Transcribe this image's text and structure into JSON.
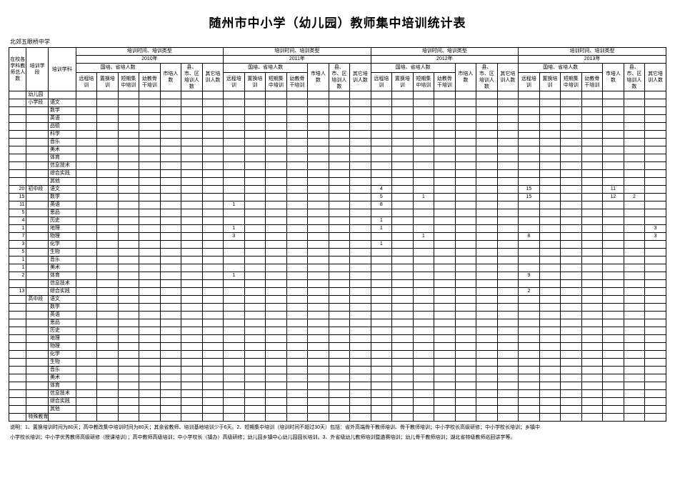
{
  "title": "随州市中小学（幼儿园）教师集中培训统计表",
  "subtitle": "北郊五眼桥中学",
  "header": {
    "col_a": "在校各学科教师总人数",
    "col_b": "培训学段",
    "col_c": "培训学科",
    "year_block_top": "培训时间、培训类型",
    "years": [
      "2010年",
      "2011年",
      "2012年",
      "2013年"
    ],
    "group_guosheng": "国培、省培人数",
    "sub_yuancheng": "远程培训",
    "sub_zhihuan": "置换培训",
    "sub_duanqi": "短期集中培训",
    "sub_yougugan": "幼教骨干培训",
    "col_shipei": "市培人数",
    "col_xianqu": "县、市、区培训人数",
    "col_qita": "其它培训人数"
  },
  "stages": {
    "youeryuan": "幼儿园",
    "xiaoxue": "小学段",
    "chuzhong": "初中段",
    "gaozhong": "高中段",
    "teshu": "特殊教育"
  },
  "subjects_primary": [
    "语文",
    "数学",
    "英语",
    "品德",
    "科学",
    "音乐",
    "美术",
    "体育",
    "信息技术",
    "综合实践",
    "其他"
  ],
  "subjects_middle": [
    "语文",
    "数学",
    "英语",
    "思品",
    "历史",
    "地理",
    "物理",
    "化学",
    "生物",
    "音乐",
    "美术",
    "体育",
    "信息技术",
    "综合实践"
  ],
  "subjects_high": [
    "语文",
    "数学",
    "英语",
    "思品",
    "历史",
    "地理",
    "物理",
    "化学",
    "生物",
    "音乐",
    "美术",
    "体育",
    "信息技术",
    "综合实践",
    "其他"
  ],
  "data_middle": {
    "语文": {
      "count": "20",
      "y11_yc": "",
      "y12_yc": "4",
      "y13_yc": "15",
      "y13_sp": "11"
    },
    "数学": {
      "count": "15",
      "y12_yc": "5",
      "y12_dq": "1",
      "y13_yc": "15",
      "y13_sp": "12",
      "y13_xq": "2"
    },
    "英语": {
      "count": "11",
      "y11_yc": "1",
      "y12_yc": "8"
    },
    "思品": {
      "count": "5"
    },
    "历史": {
      "count": "4",
      "y12_yc": "1"
    },
    "地理": {
      "count": "1",
      "y11_yc": "1",
      "y12_yc": "1",
      "y13_sp": "",
      "y13_qt": "3"
    },
    "物理": {
      "count": "7",
      "y11_yc": "3",
      "y12_dq": "1",
      "y13_yc": "8",
      "y13_qt": "3"
    },
    "化学": {
      "count": "3",
      "y12_yc": "1"
    },
    "生物": {
      "count": "5"
    },
    "音乐": {
      "count": "1"
    },
    "美术": {
      "count": "1"
    },
    "体育": {
      "count": "2",
      "y11_yc": "1",
      "y13_yc": "9"
    },
    "信息技术": {
      "count": ""
    },
    "综合实践": {
      "count": "13",
      "y13_yc": "2"
    }
  },
  "note1": "说明：1、置换培训时间为80天；高中教改集中培训时间为80天；其余省教师、培训基地培训少于6天。2、短期集中培训（培训时间不超过30天）包括：省外高端骨干教师培训、骨干教师培训；中小学校长高级研修；中小学校长培训；乡镇中",
  "note2": "小学校长培训；中小学优秀教师高级研修（授课培训）；高中教师高级培训；中小学校长（镇办）高级研修；幼儿园乡镇中心幼儿园园长培训。3、外省级幼儿教师培训暨遴赛培训；幼儿骨干教师培训；湖北省特级教师巡回讲学等。"
}
